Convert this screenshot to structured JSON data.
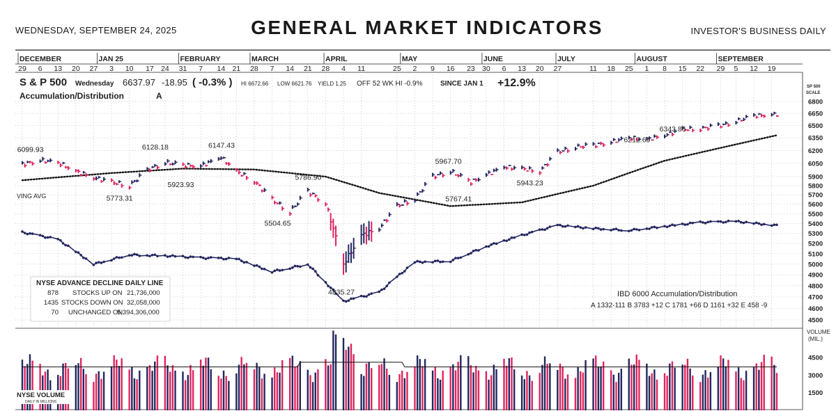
{
  "header": {
    "date": "WEDNESDAY, SEPTEMBER 24, 2025",
    "title": "GENERAL MARKET INDICATORS",
    "publisher": "INVESTOR'S BUSINESS DAILY"
  },
  "months": [
    "DECEMBER",
    "JAN 25",
    "FEBRUARY",
    "MARCH",
    "APRIL",
    "MAY",
    "JUNE",
    "JULY",
    "AUGUST",
    "SEPTEMBER"
  ],
  "day_labels": [
    "29",
    "6",
    "13",
    "20",
    "27",
    "3",
    "10",
    "17",
    "24",
    "31",
    "7",
    "14",
    "21",
    "28",
    "7",
    "14",
    "21",
    "28",
    "4",
    "11",
    "25",
    "2",
    "9",
    "16",
    "23",
    "30",
    "6",
    "13",
    "20",
    "27",
    "11",
    "18",
    "25",
    "1",
    "8",
    "15",
    "22",
    "29",
    "5",
    "12",
    "19"
  ],
  "sp500": {
    "name": "S & P 500",
    "day": "Wednesday",
    "close": "6637.97",
    "change": "-18.95",
    "pct_change": "( -0.3% )",
    "hi": "HI 6672.66",
    "low": "LOW 6621.76",
    "yield": "YIELD 1.25",
    "off_high": "OFF 52 WK HI  -0.9%",
    "ytd_label": "SINCE JAN 1",
    "ytd": "+12.9%",
    "acc_dist_label": "Accumulation/Distribution",
    "acc_dist_grade": "A"
  },
  "annotations": {
    "moving_avg": "VING AVG",
    "points": [
      {
        "text": "6099.93",
        "x_label": "Dec 6"
      },
      {
        "text": "6128.18",
        "x_label": "Jan 24"
      },
      {
        "text": "6147.43",
        "x_label": "Feb 19"
      },
      {
        "text": "5773.31",
        "x_label": "Jan 10"
      },
      {
        "text": "5923.93",
        "x_label": "Feb 3"
      },
      {
        "text": "5786.90",
        "x_label": "Mar 25"
      },
      {
        "text": "5504.65",
        "x_label": "Mar 13"
      },
      {
        "text": "4835.27",
        "x_label": "Apr 7"
      },
      {
        "text": "5967.70",
        "x_label": "May 19"
      },
      {
        "text": "5767.41",
        "x_label": "May 23"
      },
      {
        "text": "5943.23",
        "x_label": "Jun 20"
      },
      {
        "text": "6212.69",
        "x_label": "Aug 1"
      },
      {
        "text": "6343.86",
        "x_label": "Aug 15"
      }
    ]
  },
  "scale": {
    "title": "SP 500",
    "subtitle": "SCALE",
    "ticks": [
      "6800",
      "6650",
      "6500",
      "6350",
      "6200",
      "6050",
      "5900",
      "5800",
      "5700",
      "5600",
      "5500",
      "5400",
      "5300",
      "5200",
      "5100",
      "5000",
      "4900",
      "4800",
      "4700",
      "4600",
      "4500"
    ]
  },
  "volume_scale": {
    "title": "VOLUME",
    "subtitle": "(MIL.)",
    "ticks": [
      "4500",
      "3000",
      "1500"
    ]
  },
  "nyse_box": {
    "title": "NYSE ADVANCE DECLINE DAILY LINE",
    "rows": [
      {
        "count": "878",
        "label": "STOCKS  UP ON",
        "volume": "21,736,000"
      },
      {
        "count": "1435",
        "label": "STOCKS  DOWN ON",
        "volume": "32,058,000"
      },
      {
        "count": "70",
        "label": "UNCHANGED ON",
        "volume": "5,394,306,000"
      }
    ]
  },
  "ibd6000": {
    "title": "IBD 6000 Accumulation/Distribution",
    "values": "A   1332-111 B   3783 +12 C   1781 +66 D   1161 +32 E    458   -9"
  },
  "volume_label": {
    "line1": "NYSE VOLUME",
    "line2": "DAILY IN MILLIONS"
  },
  "colors": {
    "up": "#23275e",
    "down": "#e0245e",
    "ink": "#222222",
    "grid": "#9a9a9a"
  },
  "chart_data": {
    "type": "line",
    "y_scale": "log",
    "ylim": [
      4500,
      6800
    ],
    "grid": true,
    "series": [
      {
        "name": "S & P 500",
        "x": [
          "Dec 2",
          "Dec 9",
          "Dec 16",
          "Dec 23",
          "Dec 30",
          "Jan 6",
          "Jan 13",
          "Jan 21",
          "Jan 27",
          "Feb 3",
          "Feb 10",
          "Feb 18",
          "Feb 24",
          "Mar 3",
          "Mar 10",
          "Mar 17",
          "Mar 24",
          "Mar 31",
          "Apr 7",
          "Apr 14",
          "Apr 21",
          "Apr 28",
          "May 5",
          "May 12",
          "May 19",
          "May 27",
          "Jun 2",
          "Jun 9",
          "Jun 16",
          "Jun 23",
          "Jun 30",
          "Jul 7",
          "Jul 14",
          "Jul 21",
          "Jul 28",
          "Aug 4",
          "Aug 11",
          "Aug 18",
          "Aug 25",
          "Sep 2",
          "Sep 8",
          "Sep 15",
          "Sep 24"
        ],
        "values": [
          6040,
          6085,
          6060,
          5960,
          5890,
          5840,
          5800,
          5990,
          6060,
          6030,
          6020,
          6120,
          5960,
          5850,
          5650,
          5520,
          5740,
          5610,
          5000,
          5280,
          5350,
          5580,
          5660,
          5900,
          5960,
          5840,
          5920,
          6010,
          5990,
          5960,
          6180,
          6240,
          6260,
          6300,
          6350,
          6330,
          6380,
          6450,
          6460,
          6500,
          6550,
          6620,
          6637.97
        ]
      },
      {
        "name": "Moving Average",
        "x": [
          "Dec 2",
          "Jan 6",
          "Feb 3",
          "Mar 3",
          "Mar 31",
          "Apr 21",
          "May 19",
          "Jun 16",
          "Jul 14",
          "Aug 11",
          "Sep 24"
        ],
        "values": [
          5860,
          5940,
          5990,
          5980,
          5900,
          5720,
          5580,
          5620,
          5800,
          6080,
          6380
        ]
      },
      {
        "name": "NYSE Advance Decline Daily Line",
        "x": [
          "Dec 2",
          "Dec 16",
          "Dec 30",
          "Jan 13",
          "Jan 27",
          "Feb 10",
          "Feb 24",
          "Mar 10",
          "Mar 24",
          "Apr 7",
          "Apr 21",
          "May 5",
          "May 19",
          "Jun 2",
          "Jun 16",
          "Jun 30",
          "Jul 14",
          "Jul 28",
          "Aug 11",
          "Aug 25",
          "Sep 8",
          "Sep 24"
        ],
        "values": [
          5310,
          5240,
          5000,
          5090,
          5080,
          5060,
          5050,
          4930,
          5000,
          4660,
          4740,
          5020,
          5030,
          5170,
          5280,
          5380,
          5350,
          5330,
          5370,
          5410,
          5420,
          5380
        ]
      }
    ],
    "volume": {
      "name": "NYSE VOLUME",
      "unit": "millions",
      "ylim": [
        0,
        7000
      ],
      "ticks": [
        4500,
        3000,
        1500
      ],
      "approx_range": [
        1000,
        7000
      ]
    }
  }
}
